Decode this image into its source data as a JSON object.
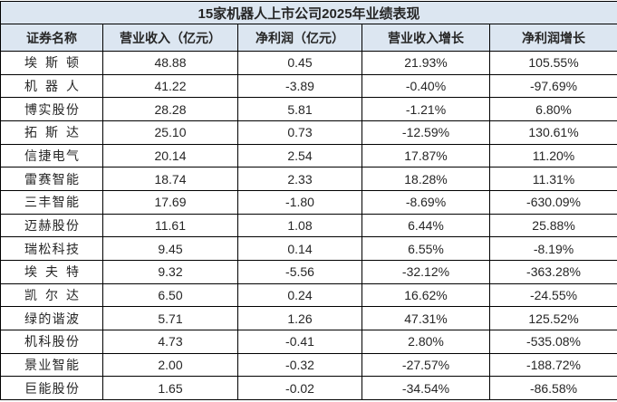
{
  "chart_data": {
    "type": "table",
    "title": "15家机器人上市公司2025年业绩表现",
    "columns": [
      "证券名称",
      "营业收入（亿元）",
      "净利润（亿元）",
      "营业收入增长",
      "净利润增长"
    ],
    "rows": [
      {
        "name": "埃斯顿",
        "revenue": "48.88",
        "profit": "0.45",
        "revenue_growth": "21.93%",
        "profit_growth": "105.55%"
      },
      {
        "name": "机器人",
        "revenue": "41.22",
        "profit": "-3.89",
        "revenue_growth": "-0.40%",
        "profit_growth": "-97.69%"
      },
      {
        "name": "博实股份",
        "revenue": "28.28",
        "profit": "5.81",
        "revenue_growth": "-1.21%",
        "profit_growth": "6.80%"
      },
      {
        "name": "拓斯达",
        "revenue": "25.10",
        "profit": "0.73",
        "revenue_growth": "-12.59%",
        "profit_growth": "130.61%"
      },
      {
        "name": "信捷电气",
        "revenue": "20.14",
        "profit": "2.54",
        "revenue_growth": "17.87%",
        "profit_growth": "11.20%"
      },
      {
        "name": "雷赛智能",
        "revenue": "18.74",
        "profit": "2.33",
        "revenue_growth": "18.28%",
        "profit_growth": "11.31%"
      },
      {
        "name": "三丰智能",
        "revenue": "17.69",
        "profit": "-1.80",
        "revenue_growth": "-8.69%",
        "profit_growth": "-630.09%"
      },
      {
        "name": "迈赫股份",
        "revenue": "11.61",
        "profit": "1.08",
        "revenue_growth": "6.44%",
        "profit_growth": "25.88%"
      },
      {
        "name": "瑞松科技",
        "revenue": "9.45",
        "profit": "0.14",
        "revenue_growth": "6.55%",
        "profit_growth": "-8.19%"
      },
      {
        "name": "埃夫特",
        "revenue": "9.32",
        "profit": "-5.56",
        "revenue_growth": "-32.12%",
        "profit_growth": "-363.28%"
      },
      {
        "name": "凯尔达",
        "revenue": "6.50",
        "profit": "0.24",
        "revenue_growth": "16.62%",
        "profit_growth": "-24.55%"
      },
      {
        "name": "绿的谐波",
        "revenue": "5.71",
        "profit": "1.26",
        "revenue_growth": "47.31%",
        "profit_growth": "125.52%"
      },
      {
        "name": "机科股份",
        "revenue": "4.73",
        "profit": "-0.41",
        "revenue_growth": "2.80%",
        "profit_growth": "-535.08%"
      },
      {
        "name": "景业智能",
        "revenue": "2.00",
        "profit": "-0.32",
        "revenue_growth": "-27.57%",
        "profit_growth": "-188.72%"
      },
      {
        "name": "巨能股份",
        "revenue": "1.65",
        "profit": "-0.02",
        "revenue_growth": "-34.54%",
        "profit_growth": "-86.58%"
      }
    ]
  },
  "colors": {
    "header_bg": "#dce6f1",
    "border": "#000000",
    "text": "#262626",
    "background": "#ffffff"
  }
}
